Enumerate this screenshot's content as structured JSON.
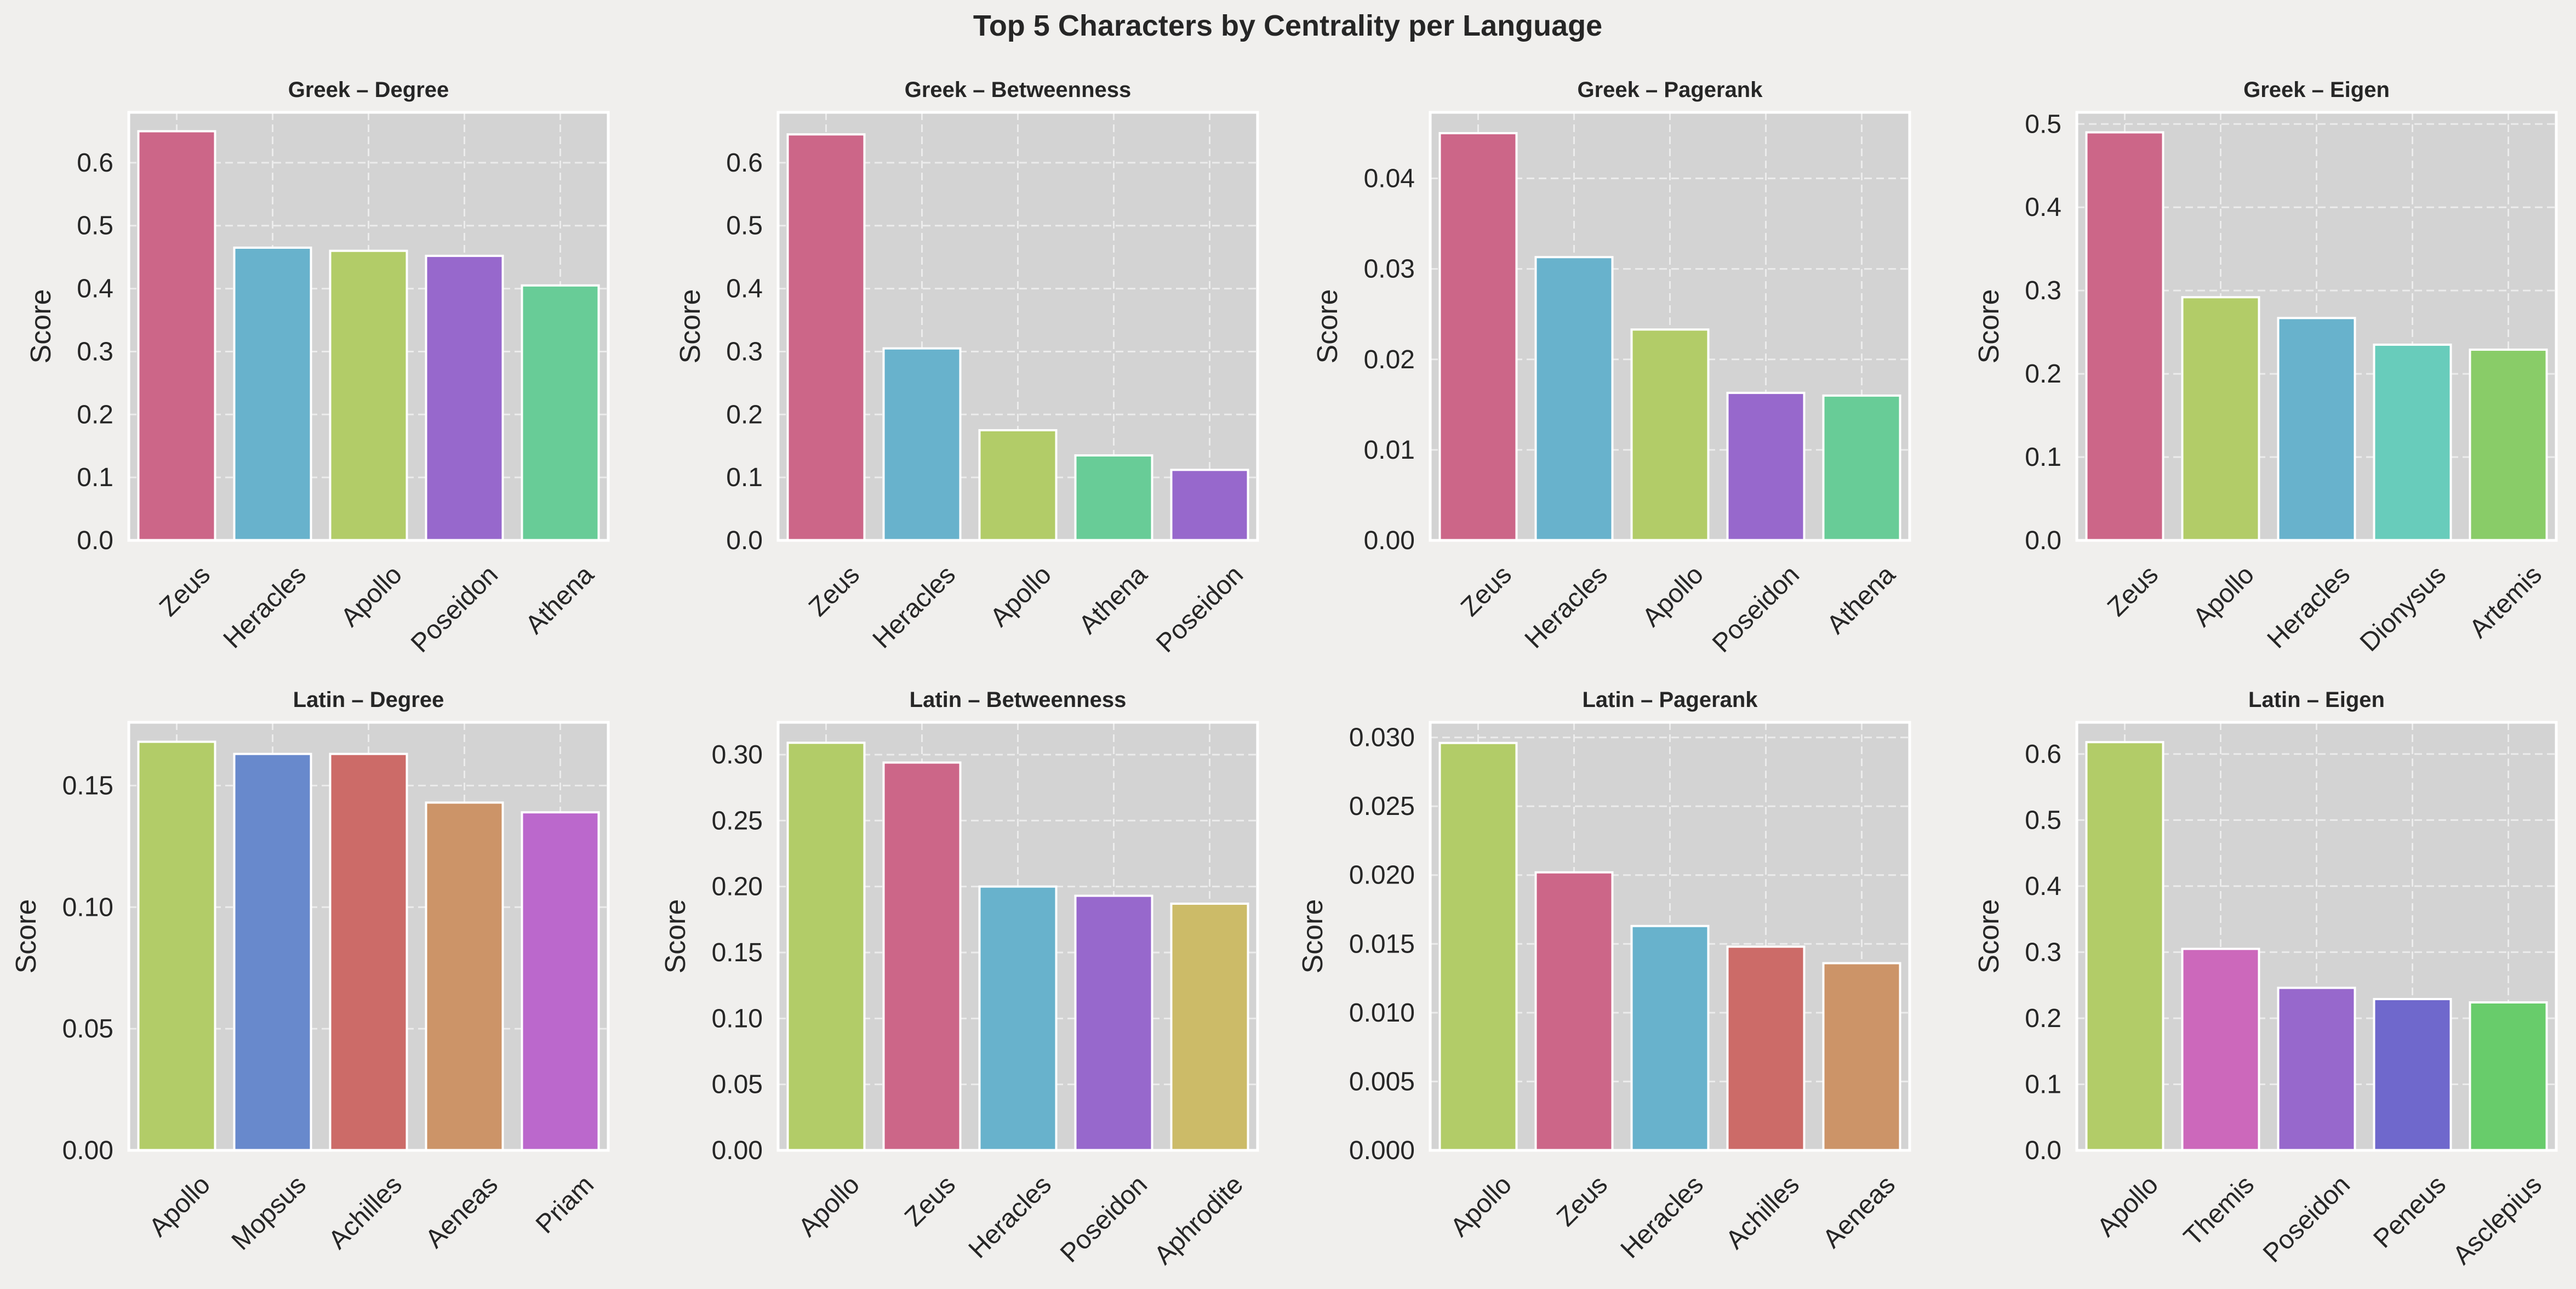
{
  "title": "Top 5 Characters by Centrality per Language",
  "colors": {
    "background": "#f0efed",
    "plot_bg": "#d3d3d3",
    "grid": "#ececec",
    "axis_text": "#262626"
  },
  "chart_data": [
    {
      "type": "bar",
      "title": "Greek – Degree",
      "ylabel": "Score",
      "categories": [
        "Zeus",
        "Heracles",
        "Apollo",
        "Poseidon",
        "Athena"
      ],
      "values": [
        0.65,
        0.465,
        0.46,
        0.452,
        0.405
      ],
      "colors": [
        "#cc6688",
        "#68b2cc",
        "#b2cc68",
        "#9768cc",
        "#68cc97"
      ],
      "ylim": [
        0,
        0.68
      ],
      "yticks": [
        0.0,
        0.1,
        0.2,
        0.3,
        0.4,
        0.5,
        0.6
      ],
      "ytick_labels": [
        "0.0",
        "0.1",
        "0.2",
        "0.3",
        "0.4",
        "0.5",
        "0.6"
      ],
      "grid": true
    },
    {
      "type": "bar",
      "title": "Greek – Betweenness",
      "ylabel": "Score",
      "categories": [
        "Zeus",
        "Heracles",
        "Apollo",
        "Athena",
        "Poseidon"
      ],
      "values": [
        0.645,
        0.305,
        0.175,
        0.135,
        0.112
      ],
      "colors": [
        "#cc6688",
        "#68b2cc",
        "#b2cc68",
        "#68cc97",
        "#9768cc"
      ],
      "ylim": [
        0,
        0.68
      ],
      "yticks": [
        0.0,
        0.1,
        0.2,
        0.3,
        0.4,
        0.5,
        0.6
      ],
      "ytick_labels": [
        "0.0",
        "0.1",
        "0.2",
        "0.3",
        "0.4",
        "0.5",
        "0.6"
      ],
      "grid": true
    },
    {
      "type": "bar",
      "title": "Greek – Pagerank",
      "ylabel": "Score",
      "categories": [
        "Zeus",
        "Heracles",
        "Apollo",
        "Poseidon",
        "Athena"
      ],
      "values": [
        0.045,
        0.0313,
        0.0233,
        0.0163,
        0.016
      ],
      "colors": [
        "#cc6688",
        "#68b2cc",
        "#b2cc68",
        "#9768cc",
        "#68cc97"
      ],
      "ylim": [
        0,
        0.0473
      ],
      "yticks": [
        0.0,
        0.01,
        0.02,
        0.03,
        0.04
      ],
      "ytick_labels": [
        "0.00",
        "0.01",
        "0.02",
        "0.03",
        "0.04"
      ],
      "grid": true
    },
    {
      "type": "bar",
      "title": "Greek – Eigen",
      "ylabel": "Score",
      "categories": [
        "Zeus",
        "Apollo",
        "Heracles",
        "Dionysus",
        "Artemis"
      ],
      "values": [
        0.49,
        0.292,
        0.267,
        0.235,
        0.229
      ],
      "colors": [
        "#cc6688",
        "#b2cc68",
        "#68b2cc",
        "#68ccbb",
        "#89cc68"
      ],
      "ylim": [
        0,
        0.514
      ],
      "yticks": [
        0.0,
        0.1,
        0.2,
        0.3,
        0.4,
        0.5
      ],
      "ytick_labels": [
        "0.0",
        "0.1",
        "0.2",
        "0.3",
        "0.4",
        "0.5"
      ],
      "grid": true
    },
    {
      "type": "bar",
      "title": "Latin – Degree",
      "ylabel": "Score",
      "categories": [
        "Apollo",
        "Mopsus",
        "Achilles",
        "Aeneas",
        "Priam"
      ],
      "values": [
        0.168,
        0.163,
        0.163,
        0.143,
        0.139
      ],
      "colors": [
        "#b2cc68",
        "#6889cc",
        "#cc6b68",
        "#cc9468",
        "#bb68cc"
      ],
      "ylim": [
        0,
        0.176
      ],
      "yticks": [
        0.0,
        0.05,
        0.1,
        0.15
      ],
      "ytick_labels": [
        "0.00",
        "0.05",
        "0.10",
        "0.15"
      ],
      "grid": true
    },
    {
      "type": "bar",
      "title": "Latin – Betweenness",
      "ylabel": "Score",
      "categories": [
        "Apollo",
        "Zeus",
        "Heracles",
        "Poseidon",
        "Aphrodite"
      ],
      "values": [
        0.309,
        0.294,
        0.2,
        0.193,
        0.187
      ],
      "colors": [
        "#b2cc68",
        "#cc6688",
        "#68b2cc",
        "#9768cc",
        "#ccbb68"
      ],
      "ylim": [
        0,
        0.3245
      ],
      "yticks": [
        0.0,
        0.05,
        0.1,
        0.15,
        0.2,
        0.25,
        0.3
      ],
      "ytick_labels": [
        "0.00",
        "0.05",
        "0.10",
        "0.15",
        "0.20",
        "0.25",
        "0.30"
      ],
      "grid": true
    },
    {
      "type": "bar",
      "title": "Latin – Pagerank",
      "ylabel": "Score",
      "categories": [
        "Apollo",
        "Zeus",
        "Heracles",
        "Achilles",
        "Aeneas"
      ],
      "values": [
        0.0296,
        0.0202,
        0.0163,
        0.0148,
        0.0136
      ],
      "colors": [
        "#b2cc68",
        "#cc6688",
        "#68b2cc",
        "#cc6b68",
        "#cc9468"
      ],
      "ylim": [
        0,
        0.0311
      ],
      "yticks": [
        0.0,
        0.005,
        0.01,
        0.015,
        0.02,
        0.025,
        0.03
      ],
      "ytick_labels": [
        "0.000",
        "0.005",
        "0.010",
        "0.015",
        "0.020",
        "0.025",
        "0.030"
      ],
      "grid": true
    },
    {
      "type": "bar",
      "title": "Latin – Eigen",
      "ylabel": "Score",
      "categories": [
        "Apollo",
        "Themis",
        "Poseidon",
        "Peneus",
        "Asclepius"
      ],
      "values": [
        0.618,
        0.305,
        0.246,
        0.229,
        0.224
      ],
      "colors": [
        "#b2cc68",
        "#cc68bb",
        "#9768cc",
        "#6f68cc",
        "#68cc6b"
      ],
      "ylim": [
        0,
        0.648
      ],
      "yticks": [
        0.0,
        0.1,
        0.2,
        0.3,
        0.4,
        0.5,
        0.6
      ],
      "ytick_labels": [
        "0.0",
        "0.1",
        "0.2",
        "0.3",
        "0.4",
        "0.5",
        "0.6"
      ],
      "grid": true
    }
  ]
}
